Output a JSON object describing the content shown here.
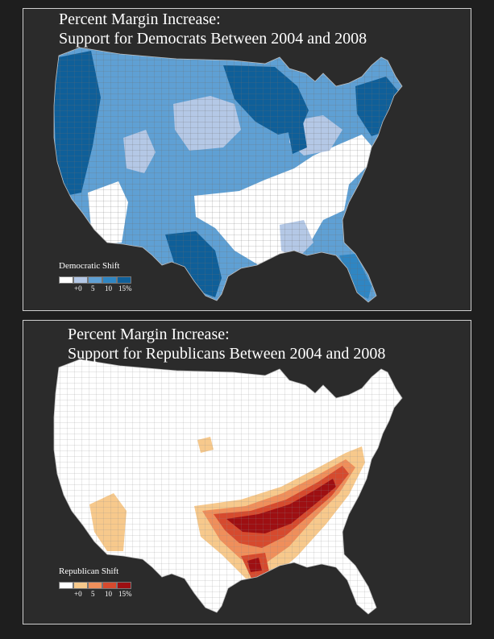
{
  "colors": {
    "background": "#2b2b2b",
    "border": "#cfcfcf",
    "county_lines": "#6b6b6b",
    "democratic_scale": [
      "#ffffff",
      "#b4c8e6",
      "#5fa0d4",
      "#2f86c3",
      "#0f5f99"
    ],
    "republican_scale": [
      "#ffffff",
      "#f7c98c",
      "#ef8f5b",
      "#d64a2e",
      "#9e0f12"
    ]
  },
  "panels": [
    {
      "id": "democrats",
      "title_line1": "Percent Margin Increase:",
      "title_line2": "Support for Democrats Between 2004 and 2008",
      "legend": {
        "title": "Democratic Shift",
        "ticks": [
          "+0",
          "5",
          "10",
          "15%"
        ]
      }
    },
    {
      "id": "republicans",
      "title_line1": "Percent Margin Increase:",
      "title_line2": "Support for Republicans Between 2004 and 2008",
      "legend": {
        "title": "Republican Shift",
        "ticks": [
          "+0",
          "5",
          "10",
          "15%"
        ]
      }
    }
  ]
}
